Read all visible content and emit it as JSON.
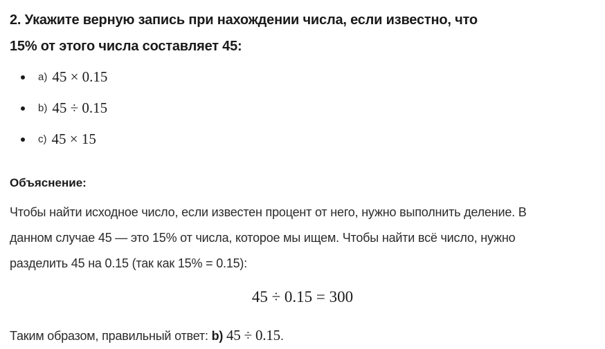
{
  "question": {
    "title": "2. Укажите верную запись при нахождении числа, если известно, что 15% от этого числа составляет 45:",
    "title_lines": [
      "2. Укажите верную запись при нахождении числа, если известно, что",
      "15% от этого числа составляет 45:"
    ],
    "options": [
      {
        "label": "a)",
        "expression": "45 × 0.15"
      },
      {
        "label": "b)",
        "expression": "45 ÷ 0.15"
      },
      {
        "label": "c)",
        "expression": "45 × 15"
      }
    ]
  },
  "explanation": {
    "heading": "Объяснение:",
    "body": "Чтобы найти исходное число, если известен процент от него, нужно выполнить деление. В данном случае 45 — это 15% от числа, которое мы ищем. Чтобы найти всё число, нужно разделить 45 на 0.15 (так как 15% = 0.15):",
    "body_lines": [
      "Чтобы найти исходное число, если известен процент от него, нужно выполнить деление. В",
      "данном случае 45 — это 15% от числа, которое мы ищем. Чтобы найти всё число, нужно",
      "разделить 45 на 0.15 (так как 15% = 0.15):"
    ],
    "formula": "45 ÷ 0.15 = 300",
    "conclusion_prefix": "Таким образом, правильный ответ:",
    "answer_label": "b)",
    "answer_expression": "45 ÷ 0.15",
    "conclusion_suffix": "."
  },
  "colors": {
    "background": "#ffffff",
    "heading_text": "#1a1a1a",
    "body_text": "#2b2b2b"
  }
}
